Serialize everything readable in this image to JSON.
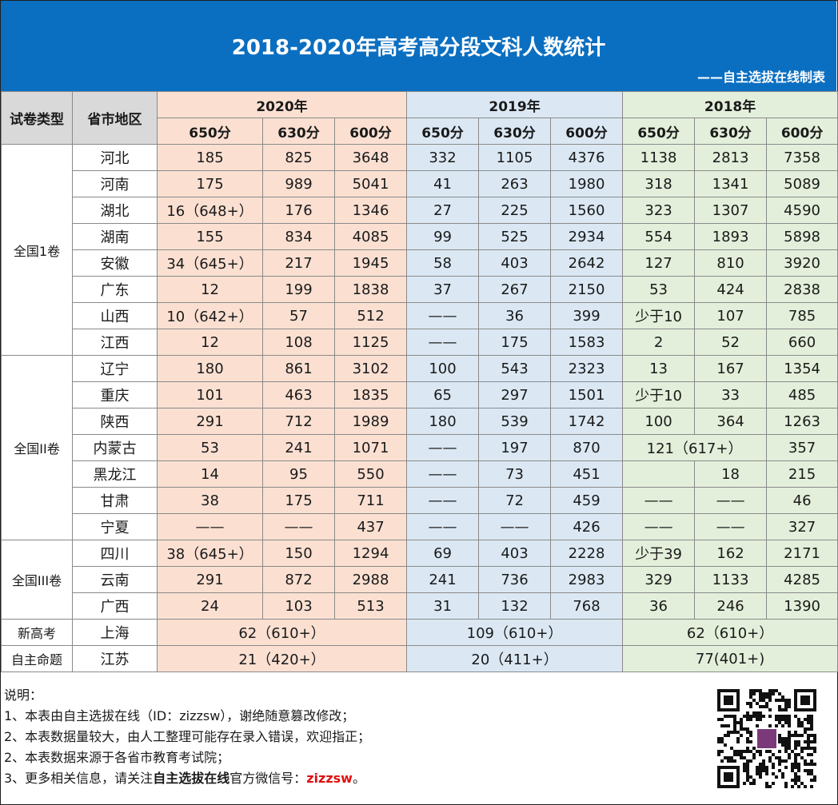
{
  "title": "2018-2020年高考高分段文科人数统计",
  "maker": "——自主选拔在线制表",
  "header": {
    "col_type": "试卷类型",
    "col_region": "省市地区",
    "years": [
      "2020年",
      "2019年",
      "2018年"
    ],
    "scores": [
      "650分",
      "630分",
      "600分"
    ]
  },
  "groups": {
    "g1": "全国1卷",
    "g2": "全国II卷",
    "g3": "全国III卷",
    "g4": "新高考",
    "g5": "自主命题"
  },
  "rows": [
    {
      "prov": "河北",
      "v": [
        "185",
        "825",
        "3648",
        "332",
        "1105",
        "4376",
        "1138",
        "2813",
        "7358"
      ]
    },
    {
      "prov": "河南",
      "v": [
        "175",
        "989",
        "5041",
        "41",
        "263",
        "1980",
        "318",
        "1341",
        "5089"
      ]
    },
    {
      "prov": "湖北",
      "v": [
        "16（648+）",
        "176",
        "1346",
        "27",
        "225",
        "1560",
        "323",
        "1307",
        "4590"
      ]
    },
    {
      "prov": "湖南",
      "v": [
        "155",
        "834",
        "4085",
        "99",
        "525",
        "2934",
        "554",
        "1893",
        "5898"
      ]
    },
    {
      "prov": "安徽",
      "v": [
        "34（645+）",
        "217",
        "1945",
        "58",
        "403",
        "2642",
        "127",
        "810",
        "3920"
      ]
    },
    {
      "prov": "广东",
      "v": [
        "12",
        "199",
        "1838",
        "37",
        "267",
        "2150",
        "53",
        "424",
        "2838"
      ]
    },
    {
      "prov": "山西",
      "v": [
        "10（642+）",
        "57",
        "512",
        "——",
        "36",
        "399",
        "少于10",
        "107",
        "785"
      ]
    },
    {
      "prov": "江西",
      "v": [
        "12",
        "108",
        "1125",
        "——",
        "175",
        "1583",
        "2",
        "52",
        "660"
      ]
    },
    {
      "prov": "辽宁",
      "v": [
        "180",
        "861",
        "3102",
        "100",
        "543",
        "2323",
        "13",
        "167",
        "1354"
      ]
    },
    {
      "prov": "重庆",
      "v": [
        "101",
        "463",
        "1835",
        "65",
        "297",
        "1501",
        "少于10",
        "33",
        "485"
      ]
    },
    {
      "prov": "陕西",
      "v": [
        "291",
        "712",
        "1989",
        "180",
        "539",
        "1742",
        "100",
        "364",
        "1263"
      ]
    },
    {
      "prov": "内蒙古",
      "v": [
        "53",
        "241",
        "1071",
        "——",
        "197",
        "870",
        "121（617+）",
        "357"
      ]
    },
    {
      "prov": "黑龙江",
      "v": [
        "14",
        "95",
        "550",
        "——",
        "73",
        "451",
        "",
        "18",
        "215"
      ]
    },
    {
      "prov": "甘肃",
      "v": [
        "38",
        "175",
        "711",
        "——",
        "72",
        "459",
        "——",
        "——",
        "46"
      ]
    },
    {
      "prov": "宁夏",
      "v": [
        "——",
        "——",
        "437",
        "——",
        "——",
        "426",
        "——",
        "——",
        "327"
      ]
    },
    {
      "prov": "四川",
      "v": [
        "38（645+）",
        "150",
        "1294",
        "69",
        "403",
        "2228",
        "少于39",
        "162",
        "2171"
      ]
    },
    {
      "prov": "云南",
      "v": [
        "291",
        "872",
        "2988",
        "241",
        "736",
        "2983",
        "329",
        "1133",
        "4285"
      ]
    },
    {
      "prov": "广西",
      "v": [
        "24",
        "103",
        "513",
        "31",
        "132",
        "768",
        "36",
        "246",
        "1390"
      ]
    },
    {
      "prov": "上海",
      "v": [
        "62（610+）",
        "109（610+）",
        "62（610+）"
      ]
    },
    {
      "prov": "江苏",
      "v": [
        "21（420+）",
        "20（411+）",
        "77(401+)"
      ]
    }
  ],
  "notes": {
    "label": "说明：",
    "n1": "1、本表由自主选拔在线（ID：zizzsw），谢绝随意篡改修改；",
    "n2": "2、本表数据量较大，由人工整理可能存在录入错误，欢迎指正；",
    "n3": "2、本表数据来源于各省市教育考试院；",
    "n4_a": "3、更多相关信息，请关注",
    "n4_b": "自主选拔在线",
    "n4_c": "官方微信号：",
    "n4_d": "zizzsw",
    "n4_e": "。"
  },
  "colors": {
    "header_bg": "#0b6fc1",
    "y2020_bg": "#fbe0d2",
    "y2019_bg": "#dbe8f4",
    "y2018_bg": "#e3efda",
    "wechat_red": "#e01010"
  },
  "qr_icon": "qr-code-icon"
}
